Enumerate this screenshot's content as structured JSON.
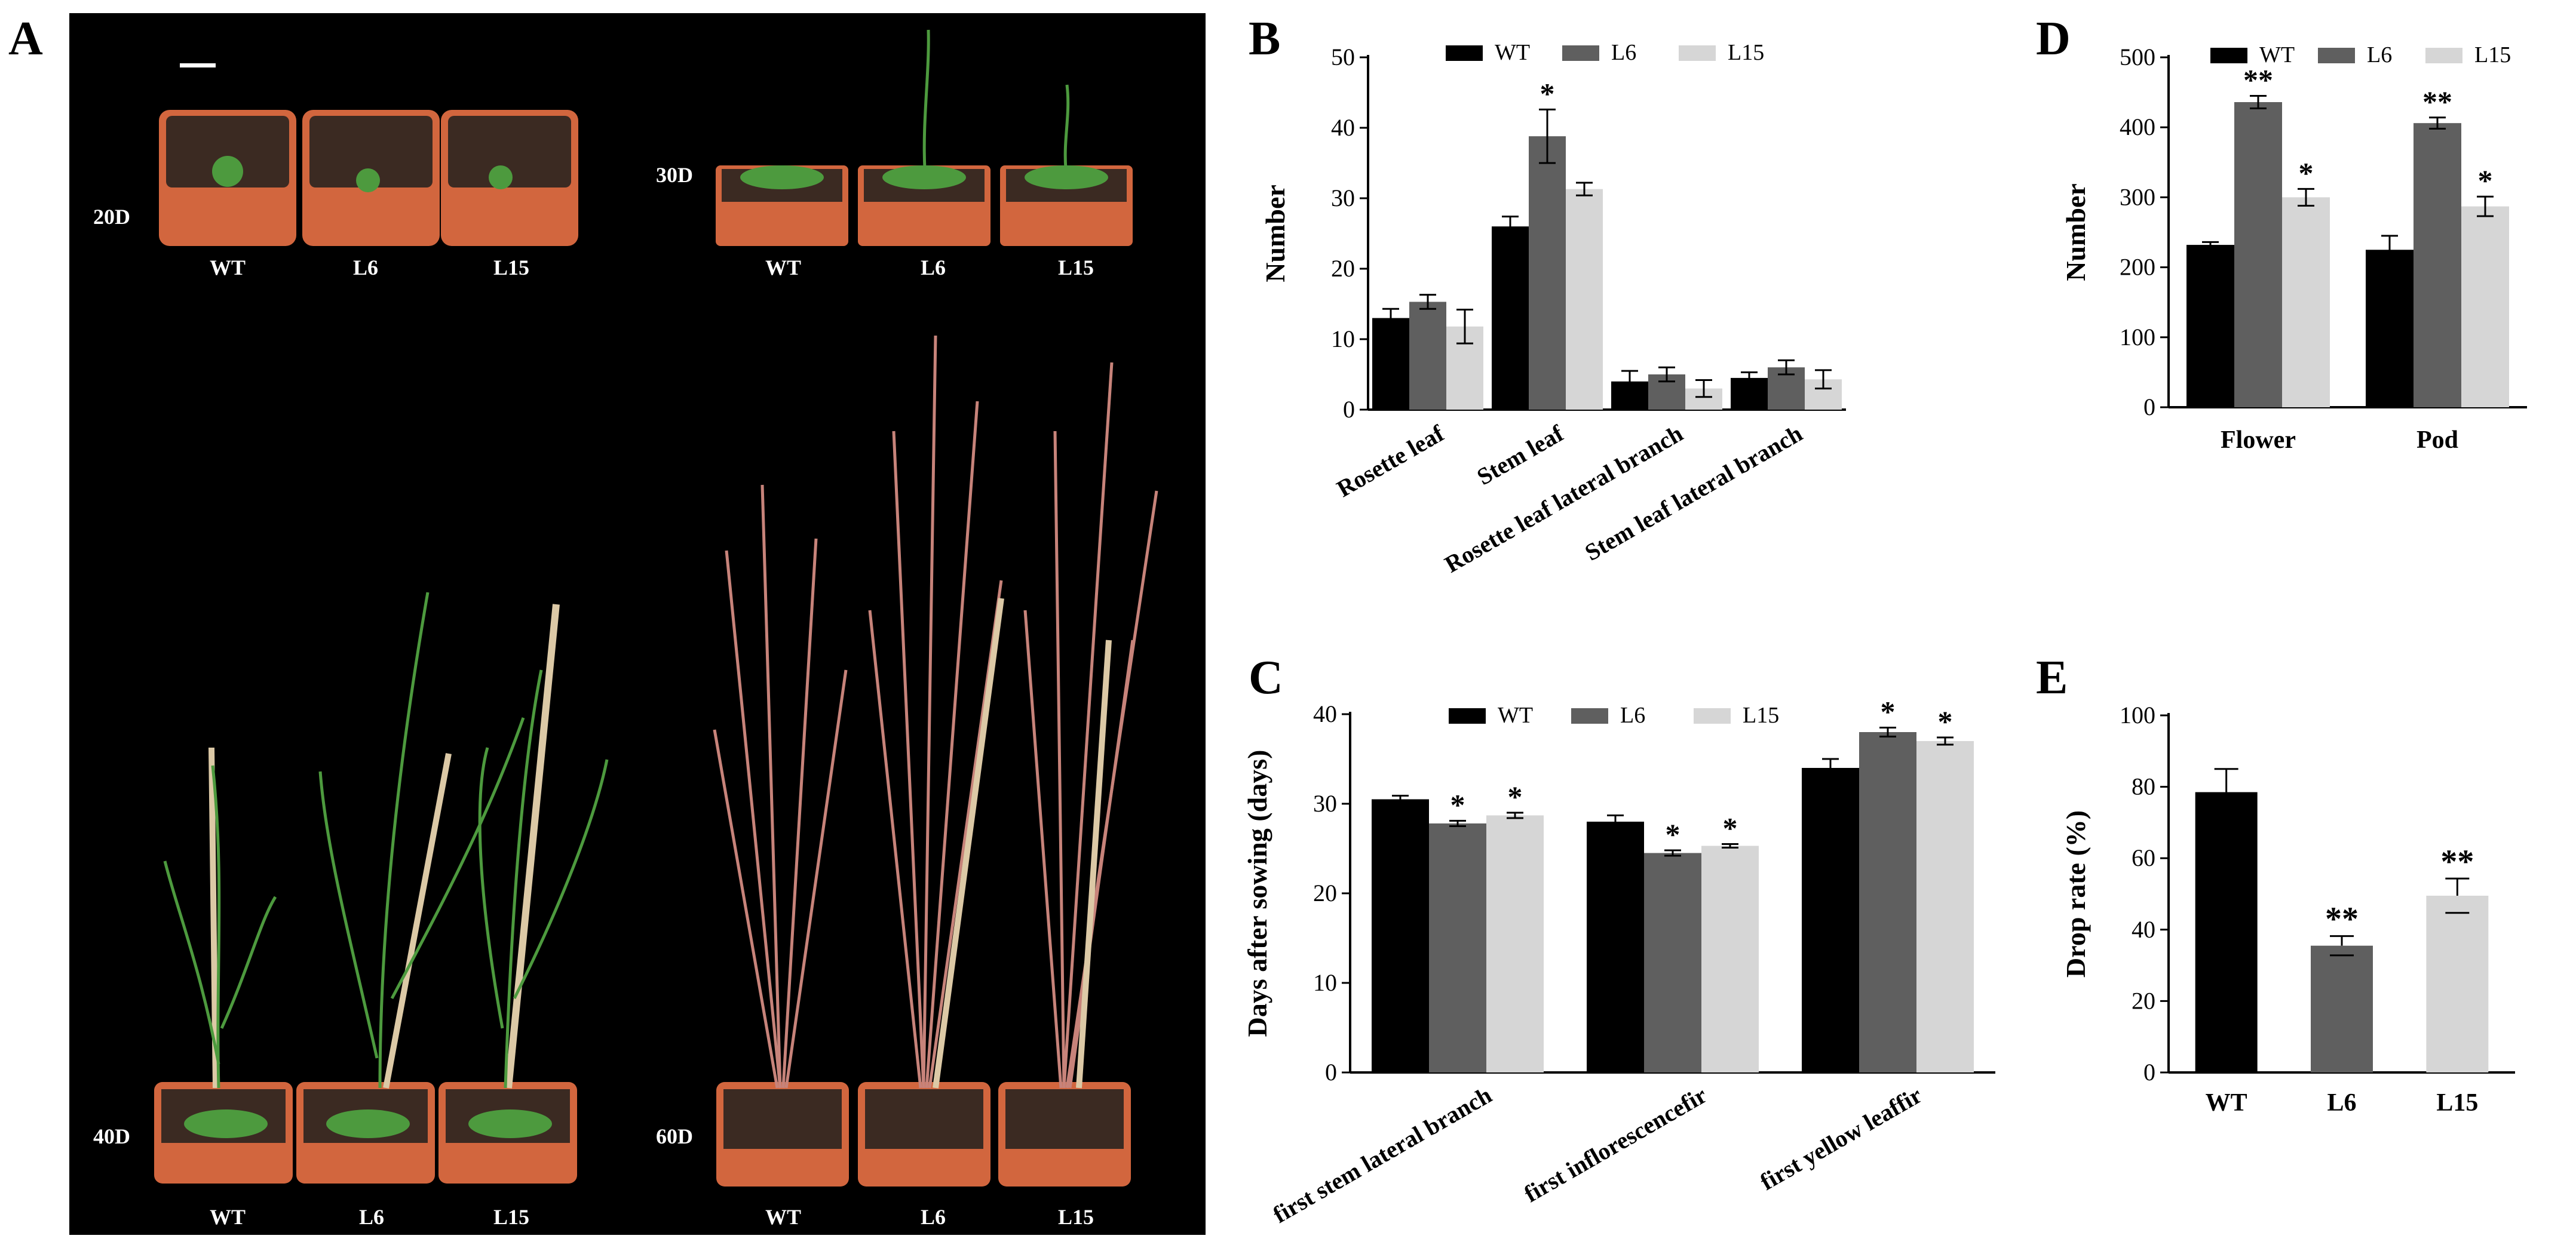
{
  "panel_letters": {
    "a": "A",
    "b": "B",
    "c": "C",
    "d": "D",
    "e": "E"
  },
  "photo": {
    "stages": [
      "20D",
      "30D",
      "40D",
      "60D"
    ],
    "genotypes": [
      "WT",
      "L6",
      "L15"
    ],
    "colors": {
      "background": "#000000",
      "pot": "#d2663e",
      "soil": "#3b2a22",
      "plant_green": "#4d9a3e",
      "dry_stem": "#c7837a",
      "stake": "#dcc9a6"
    }
  },
  "chart_data": [
    {
      "id": "B",
      "type": "bar",
      "ylabel": "Number",
      "xlabel": "",
      "ylim": [
        0,
        50
      ],
      "yticks": [
        0,
        10,
        20,
        30,
        40,
        50
      ],
      "categories": [
        "Rosette leaf",
        "Stem leaf",
        "Rosette leaf lateral branch",
        "Stem leaf lateral branch"
      ],
      "series": [
        {
          "name": "WT",
          "values": [
            13,
            26,
            4,
            4.5
          ],
          "errors": [
            1.3,
            1.4,
            1.5,
            0.8
          ],
          "color": "#000000"
        },
        {
          "name": "L6",
          "values": [
            15.3,
            38.8,
            5,
            6
          ],
          "errors": [
            1.0,
            3.8,
            1.0,
            1.0
          ],
          "color": "#5f5f5f"
        },
        {
          "name": "L15",
          "values": [
            11.8,
            31.3,
            3,
            4.3
          ],
          "errors": [
            2.4,
            0.9,
            1.2,
            1.3
          ],
          "color": "#d6d6d6"
        }
      ],
      "annotations": [
        {
          "category": 1,
          "series": 1,
          "text": "*"
        }
      ],
      "legend": "top",
      "grid": false
    },
    {
      "id": "C",
      "type": "bar",
      "ylabel": "Days after sowing (days)",
      "xlabel": "",
      "ylim": [
        0,
        40
      ],
      "yticks": [
        0,
        10,
        20,
        30,
        40
      ],
      "categories": [
        "first stem lateral branch",
        "first inflorescencefir",
        "first yellow leaffir"
      ],
      "series": [
        {
          "name": "WT",
          "values": [
            30.5,
            28,
            34
          ],
          "errors": [
            0.4,
            0.7,
            1.0
          ],
          "color": "#000000"
        },
        {
          "name": "L6",
          "values": [
            27.8,
            24.5,
            38
          ],
          "errors": [
            0.3,
            0.3,
            0.5
          ],
          "color": "#5f5f5f"
        },
        {
          "name": "L15",
          "values": [
            28.7,
            25.3,
            37
          ],
          "errors": [
            0.3,
            0.2,
            0.4
          ],
          "color": "#d6d6d6"
        }
      ],
      "annotations": [
        {
          "category": 0,
          "series": 1,
          "text": "*"
        },
        {
          "category": 0,
          "series": 2,
          "text": "*"
        },
        {
          "category": 1,
          "series": 1,
          "text": "*"
        },
        {
          "category": 1,
          "series": 2,
          "text": "*"
        },
        {
          "category": 2,
          "series": 1,
          "text": "*"
        },
        {
          "category": 2,
          "series": 2,
          "text": "*"
        }
      ],
      "legend": "top",
      "grid": false
    },
    {
      "id": "D",
      "type": "bar",
      "ylabel": "Number",
      "xlabel": "",
      "ylim": [
        0,
        500
      ],
      "yticks": [
        0,
        100,
        200,
        300,
        400,
        500
      ],
      "categories": [
        "Flower",
        "Pod"
      ],
      "series": [
        {
          "name": "WT",
          "values": [
            232,
            225
          ],
          "errors": [
            4,
            20
          ],
          "color": "#000000"
        },
        {
          "name": "L6",
          "values": [
            436,
            406
          ],
          "errors": [
            9,
            8
          ],
          "color": "#5f5f5f"
        },
        {
          "name": "L15",
          "values": [
            300,
            287
          ],
          "errors": [
            12,
            14
          ],
          "color": "#d6d6d6"
        }
      ],
      "annotations": [
        {
          "category": 0,
          "series": 1,
          "text": "**"
        },
        {
          "category": 0,
          "series": 2,
          "text": "*"
        },
        {
          "category": 1,
          "series": 1,
          "text": "**"
        },
        {
          "category": 1,
          "series": 2,
          "text": "*"
        }
      ],
      "legend": "top",
      "grid": false
    },
    {
      "id": "E",
      "type": "bar",
      "ylabel": "Drop rate (%)",
      "xlabel": "",
      "ylim": [
        0,
        100
      ],
      "yticks": [
        0,
        20,
        40,
        60,
        80,
        100
      ],
      "categories": [
        "WT",
        "L6",
        "L15"
      ],
      "series": [
        {
          "name": "",
          "values": [
            78.5,
            35.5,
            49.5
          ],
          "errors": [
            6.5,
            2.7,
            4.8
          ],
          "colors": [
            "#000000",
            "#5f5f5f",
            "#d6d6d6"
          ]
        }
      ],
      "annotations": [
        {
          "category": 1,
          "series": 0,
          "text": "**"
        },
        {
          "category": 2,
          "series": 0,
          "text": "**"
        }
      ],
      "legend": "none",
      "grid": false
    }
  ]
}
